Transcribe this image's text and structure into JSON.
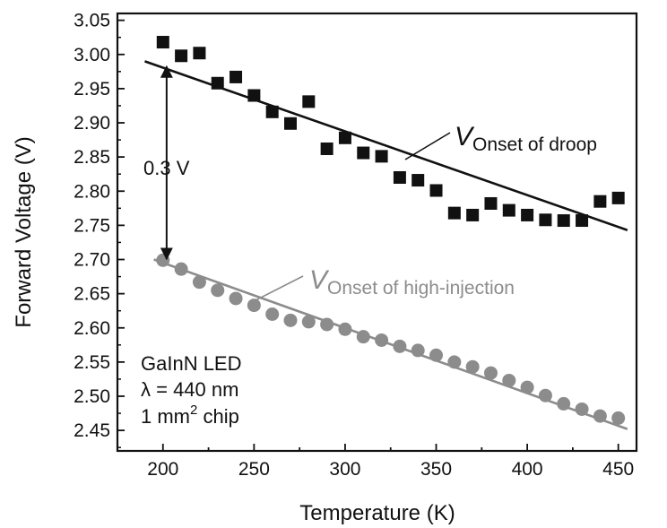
{
  "chart_data": {
    "type": "scatter",
    "title": "",
    "xlabel": "Temperature   (K)",
    "ylabel": "Forward Voltage   (V)",
    "xlim": [
      175,
      460
    ],
    "ylim": [
      2.42,
      3.06
    ],
    "xticks": [
      200,
      250,
      300,
      350,
      400,
      450
    ],
    "yticks": [
      2.45,
      2.5,
      2.55,
      2.6,
      2.65,
      2.7,
      2.75,
      2.8,
      2.85,
      2.9,
      2.95,
      3.0,
      3.05
    ],
    "grid": false,
    "colors": {
      "droop": "#111111",
      "injection": "#8c8c8c"
    },
    "series": [
      {
        "marker": "square",
        "x": [
          200,
          210,
          220,
          230,
          240,
          250,
          260,
          270,
          280,
          290,
          300,
          310,
          320,
          330,
          340,
          350,
          360,
          370,
          380,
          390,
          400,
          410,
          420,
          430,
          440,
          450
        ],
        "y": [
          3.018,
          2.998,
          3.002,
          2.958,
          2.967,
          2.94,
          2.916,
          2.899,
          2.931,
          2.862,
          2.878,
          2.856,
          2.851,
          2.82,
          2.816,
          2.801,
          2.768,
          2.765,
          2.782,
          2.772,
          2.765,
          2.758,
          2.757,
          2.757,
          2.785,
          2.79
        ]
      },
      {
        "marker": "circle",
        "x": [
          200,
          210,
          220,
          230,
          240,
          250,
          260,
          270,
          280,
          290,
          300,
          310,
          320,
          330,
          340,
          350,
          360,
          370,
          380,
          390,
          400,
          410,
          420,
          430,
          440,
          450
        ],
        "y": [
          2.699,
          2.686,
          2.667,
          2.655,
          2.643,
          2.633,
          2.62,
          2.611,
          2.609,
          2.605,
          2.598,
          2.587,
          2.582,
          2.573,
          2.567,
          2.56,
          2.55,
          2.543,
          2.534,
          2.523,
          2.513,
          2.501,
          2.489,
          2.481,
          2.471,
          2.468
        ]
      }
    ],
    "fit_lines": [
      {
        "label_main": "V",
        "label_sub": "Onset of droop",
        "x": [
          190,
          455
        ],
        "y": [
          2.99,
          2.743
        ]
      },
      {
        "label_main": "V",
        "label_sub": "Onset of high-injection",
        "x": [
          195,
          455
        ],
        "y": [
          2.7,
          2.452
        ]
      }
    ],
    "annotations": {
      "arrow_label": "0.3 V",
      "arrow_x": 202,
      "arrow_y": [
        2.985,
        2.698
      ],
      "box_lines": [
        "GaInN LED",
        "λ = 440 nm",
        "1 mm",
        "2",
        " chip"
      ]
    }
  }
}
